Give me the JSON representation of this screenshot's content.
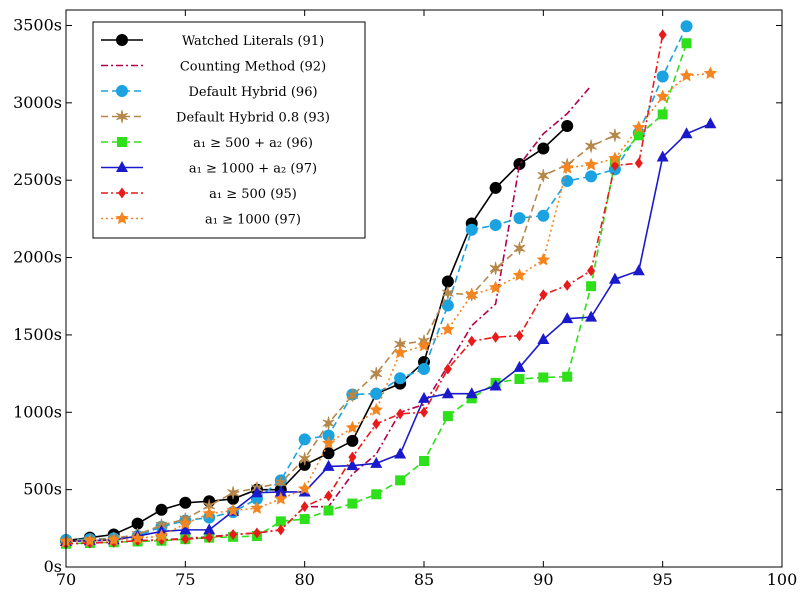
{
  "chart_data": {
    "type": "line",
    "title": "",
    "xlabel": "",
    "ylabel": "",
    "xlim": [
      70,
      100
    ],
    "ylim": [
      0,
      3600
    ],
    "xticks": [
      70,
      75,
      80,
      85,
      90,
      95,
      100
    ],
    "yticks": [
      0,
      500,
      1000,
      1500,
      2000,
      2500,
      3000,
      3500
    ],
    "y_tick_suffix": "s",
    "grid": false,
    "legend_position": "top-left",
    "series": [
      {
        "name": "Watched Literals (91)",
        "color": "#000000",
        "dash": "solid",
        "marker": "circle",
        "x": [
          70,
          71,
          72,
          73,
          74,
          75,
          76,
          77,
          78,
          79,
          80,
          81,
          82,
          83,
          84,
          85,
          86,
          87,
          88,
          89,
          90,
          91
        ],
        "y": [
          170,
          190,
          210,
          280,
          370,
          415,
          425,
          440,
          500,
          500,
          660,
          735,
          815,
          1120,
          1185,
          1325,
          1845,
          2220,
          2450,
          2605,
          2705,
          2850
        ]
      },
      {
        "name": "Counting Method (92)",
        "color": "#b3004d",
        "dash": "dashdot",
        "marker": "none",
        "x": [
          70,
          71,
          72,
          73,
          74,
          75,
          76,
          77,
          78,
          79,
          80,
          81,
          82,
          83,
          84,
          85,
          86,
          87,
          88,
          89,
          90,
          91,
          92
        ],
        "y": [
          150,
          155,
          160,
          170,
          175,
          185,
          195,
          210,
          220,
          240,
          390,
          390,
          600,
          730,
          1000,
          1050,
          1300,
          1560,
          1700,
          2600,
          2800,
          2930,
          3110
        ]
      },
      {
        "name": "Default Hybrid (96)",
        "color": "#1aa3e0",
        "dash": "dashed",
        "marker": "circle",
        "x": [
          70,
          71,
          72,
          73,
          74,
          75,
          76,
          77,
          78,
          79,
          80,
          81,
          82,
          83,
          84,
          85,
          86,
          87,
          88,
          89,
          90,
          91,
          92,
          93,
          94,
          95,
          96
        ],
        "y": [
          175,
          180,
          185,
          200,
          260,
          300,
          320,
          355,
          440,
          560,
          825,
          850,
          1115,
          1120,
          1220,
          1280,
          1690,
          2180,
          2210,
          2255,
          2270,
          2495,
          2525,
          2570,
          2805,
          3170,
          3495
        ]
      },
      {
        "name": "Default Hybrid 0.8 (93)",
        "color": "#b5884a",
        "dash": "dashed",
        "marker": "star6",
        "x": [
          70,
          71,
          72,
          73,
          74,
          75,
          76,
          77,
          78,
          79,
          80,
          81,
          82,
          83,
          84,
          85,
          86,
          87,
          88,
          89,
          90,
          91,
          92,
          93
        ],
        "y": [
          170,
          175,
          185,
          210,
          270,
          310,
          395,
          480,
          510,
          545,
          700,
          930,
          1110,
          1250,
          1440,
          1460,
          1770,
          1760,
          1930,
          2060,
          2530,
          2600,
          2720,
          2790
        ]
      },
      {
        "name": "a₁ ≥ 500 + a₂ (96)",
        "color": "#2ee01a",
        "dash": "dashed",
        "marker": "square",
        "x": [
          70,
          71,
          72,
          73,
          74,
          75,
          76,
          77,
          78,
          79,
          80,
          81,
          82,
          83,
          84,
          85,
          86,
          87,
          88,
          89,
          90,
          91,
          92,
          93,
          94,
          95,
          96
        ],
        "y": [
          150,
          155,
          160,
          165,
          170,
          180,
          190,
          195,
          200,
          295,
          310,
          365,
          410,
          470,
          560,
          685,
          975,
          1090,
          1190,
          1215,
          1225,
          1230,
          1815,
          2620,
          2790,
          2925,
          3385
        ]
      },
      {
        "name": "a₁ ≥ 1000 + a₂ (97)",
        "color": "#1a1acc",
        "dash": "solid",
        "marker": "triangle",
        "x": [
          70,
          71,
          72,
          73,
          74,
          75,
          76,
          77,
          78,
          79,
          80,
          81,
          82,
          83,
          84,
          85,
          86,
          87,
          88,
          89,
          90,
          91,
          92,
          93,
          94,
          95,
          96,
          97
        ],
        "y": [
          165,
          170,
          175,
          200,
          230,
          240,
          240,
          360,
          480,
          485,
          485,
          650,
          655,
          670,
          730,
          1090,
          1120,
          1120,
          1170,
          1290,
          1470,
          1605,
          1615,
          1860,
          1915,
          2650,
          2800,
          2865
        ]
      },
      {
        "name": "a₁ ≥ 500 (95)",
        "color": "#e81a1a",
        "dash": "dashdot",
        "marker": "diamond",
        "x": [
          70,
          71,
          72,
          73,
          74,
          75,
          76,
          77,
          78,
          79,
          80,
          81,
          82,
          83,
          84,
          85,
          86,
          87,
          88,
          89,
          90,
          91,
          92,
          93,
          94,
          95
        ],
        "y": [
          150,
          155,
          160,
          170,
          175,
          180,
          190,
          210,
          220,
          240,
          390,
          460,
          710,
          925,
          990,
          1000,
          1280,
          1460,
          1485,
          1495,
          1760,
          1820,
          1915,
          2595,
          2610,
          3440
        ]
      },
      {
        "name": "a₁ ≥ 1000 (97)",
        "color": "#f5851f",
        "dash": "dotted",
        "marker": "star5",
        "x": [
          70,
          71,
          72,
          73,
          74,
          75,
          76,
          77,
          78,
          79,
          80,
          81,
          82,
          83,
          84,
          85,
          86,
          87,
          88,
          89,
          90,
          91,
          92,
          93,
          94,
          95,
          96,
          97
        ],
        "y": [
          165,
          170,
          175,
          185,
          200,
          280,
          345,
          365,
          380,
          440,
          505,
          800,
          900,
          1015,
          1385,
          1430,
          1535,
          1760,
          1805,
          1885,
          1985,
          2580,
          2600,
          2640,
          2840,
          3040,
          3175,
          3190
        ]
      }
    ]
  }
}
